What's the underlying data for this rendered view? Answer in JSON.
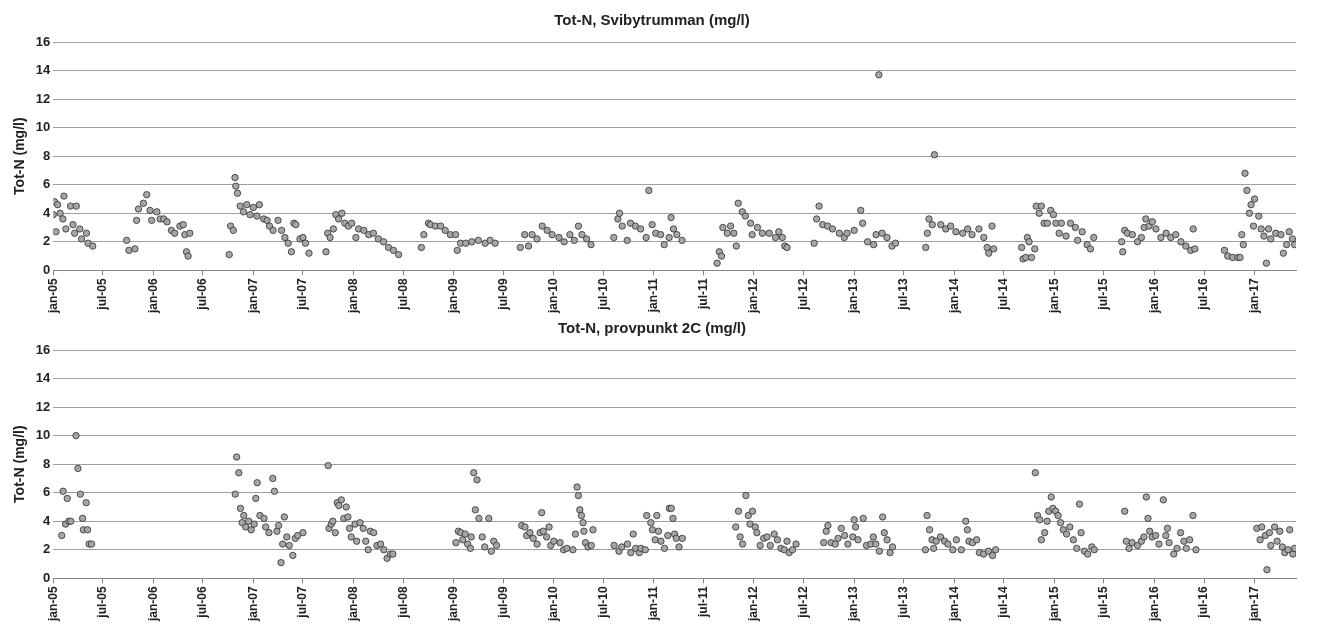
{
  "chart_data": [
    {
      "type": "scatter",
      "title": "Tot-N, Svibytrumman (mg/l)",
      "ylabel": "Tot-N (mg/l)",
      "color": "#a6a6a6",
      "marker": "circle",
      "grid": "y",
      "legend": false,
      "xlim": [
        "2005-01-01",
        "2017-06-01"
      ],
      "ylim": [
        0,
        16
      ],
      "yticks": [
        0,
        2,
        4,
        6,
        8,
        10,
        12,
        14,
        16
      ],
      "xticks": [
        {
          "value": "2005-01-01",
          "label": "jan-05"
        },
        {
          "value": "2005-07-01",
          "label": "jul-05"
        },
        {
          "value": "2006-01-01",
          "label": "jan-06"
        },
        {
          "value": "2006-07-01",
          "label": "jul-06"
        },
        {
          "value": "2007-01-01",
          "label": "jan-07"
        },
        {
          "value": "2007-07-01",
          "label": "jul-07"
        },
        {
          "value": "2008-01-01",
          "label": "jan-08"
        },
        {
          "value": "2008-07-01",
          "label": "jul-08"
        },
        {
          "value": "2009-01-01",
          "label": "jan-09"
        },
        {
          "value": "2009-07-01",
          "label": "jul-09"
        },
        {
          "value": "2010-01-01",
          "label": "jan-10"
        },
        {
          "value": "2010-07-01",
          "label": "jul-10"
        },
        {
          "value": "2011-01-01",
          "label": "jan-11"
        },
        {
          "value": "2011-07-01",
          "label": "jul-11"
        },
        {
          "value": "2012-01-01",
          "label": "jan-12"
        },
        {
          "value": "2012-07-01",
          "label": "jul-12"
        },
        {
          "value": "2013-01-01",
          "label": "jan-13"
        },
        {
          "value": "2013-07-01",
          "label": "jul-13"
        },
        {
          "value": "2014-01-01",
          "label": "jan-14"
        },
        {
          "value": "2014-07-01",
          "label": "jul-14"
        },
        {
          "value": "2015-01-01",
          "label": "jan-15"
        },
        {
          "value": "2015-07-01",
          "label": "jul-15"
        },
        {
          "value": "2016-01-01",
          "label": "jan-16"
        },
        {
          "value": "2016-07-01",
          "label": "jul-16"
        },
        {
          "value": "2017-01-01",
          "label": "jan-17"
        }
      ],
      "x": [
        "2005-01-01",
        "2005-01-06",
        "2005-01-11",
        "2005-01-17",
        "2005-01-26",
        "2005-02-05",
        "2005-02-09",
        "2005-02-16",
        "2005-03-05",
        "2005-03-14",
        "2005-03-20",
        "2005-03-26",
        "2005-04-08",
        "2005-04-14",
        "2005-05-02",
        "2005-05-08",
        "2005-05-25",
        "2005-09-26",
        "2005-10-04",
        "2005-10-26",
        "2005-11-01",
        "2005-11-08",
        "2005-11-26",
        "2005-12-08",
        "2005-12-20",
        "2005-12-26",
        "2006-01-14",
        "2006-01-26",
        "2006-02-08",
        "2006-02-20",
        "2006-03-08",
        "2006-03-20",
        "2006-04-08",
        "2006-04-20",
        "2006-04-26",
        "2006-05-02",
        "2006-05-08",
        "2006-05-14",
        "2006-10-05",
        "2006-10-10",
        "2006-10-20",
        "2006-10-26",
        "2006-10-29",
        "2006-11-04",
        "2006-11-14",
        "2006-11-26",
        "2006-12-08",
        "2006-12-20",
        "2007-01-01",
        "2007-01-14",
        "2007-01-23",
        "2007-02-08",
        "2007-02-20",
        "2007-03-01",
        "2007-03-14",
        "2007-04-01",
        "2007-04-14",
        "2007-04-26",
        "2007-05-08",
        "2007-05-20",
        "2007-05-29",
        "2007-06-05",
        "2007-06-20",
        "2007-07-01",
        "2007-07-10",
        "2007-07-23",
        "2007-09-23",
        "2007-09-29",
        "2007-10-08",
        "2007-10-20",
        "2007-10-29",
        "2007-11-08",
        "2007-11-20",
        "2007-12-01",
        "2007-12-14",
        "2007-12-26",
        "2008-01-10",
        "2008-01-20",
        "2008-02-08",
        "2008-02-26",
        "2008-03-14",
        "2008-04-01",
        "2008-04-20",
        "2008-05-08",
        "2008-05-26",
        "2008-06-14",
        "2008-09-05",
        "2008-09-14",
        "2008-10-01",
        "2008-10-08",
        "2008-10-26",
        "2008-11-14",
        "2008-12-01",
        "2008-12-20",
        "2009-01-08",
        "2009-01-14",
        "2009-01-26",
        "2009-02-14",
        "2009-03-08",
        "2009-04-01",
        "2009-04-26",
        "2009-05-14",
        "2009-06-01",
        "2009-09-01",
        "2009-09-17",
        "2009-10-01",
        "2009-10-14",
        "2009-11-01",
        "2009-11-20",
        "2009-12-08",
        "2009-12-26",
        "2010-01-20",
        "2010-02-08",
        "2010-03-01",
        "2010-03-17",
        "2010-04-01",
        "2010-04-14",
        "2010-05-01",
        "2010-05-17",
        "2010-08-08",
        "2010-08-23",
        "2010-08-29",
        "2010-09-08",
        "2010-09-26",
        "2010-10-08",
        "2010-10-26",
        "2010-11-14",
        "2010-12-04",
        "2010-12-14",
        "2010-12-26",
        "2011-01-08",
        "2011-01-26",
        "2011-02-08",
        "2011-02-26",
        "2011-03-05",
        "2011-03-14",
        "2011-03-26",
        "2011-04-14",
        "2011-08-20",
        "2011-08-28",
        "2011-09-05",
        "2011-09-10",
        "2011-09-26",
        "2011-10-08",
        "2011-10-20",
        "2011-10-29",
        "2011-11-05",
        "2011-11-20",
        "2011-12-01",
        "2011-12-20",
        "2011-12-26",
        "2012-01-14",
        "2012-02-01",
        "2012-02-26",
        "2012-03-20",
        "2012-04-01",
        "2012-04-14",
        "2012-04-23",
        "2012-05-01",
        "2012-08-08",
        "2012-08-17",
        "2012-08-26",
        "2012-09-08",
        "2012-09-26",
        "2012-10-14",
        "2012-11-08",
        "2012-11-26",
        "2012-12-06",
        "2013-01-01",
        "2013-01-25",
        "2013-02-01",
        "2013-02-19",
        "2013-03-13",
        "2013-03-22",
        "2013-04-01",
        "2013-04-13",
        "2013-05-01",
        "2013-05-19",
        "2013-06-01",
        "2013-09-19",
        "2013-09-25",
        "2013-10-01",
        "2013-10-13",
        "2013-10-21",
        "2013-11-13",
        "2013-12-01",
        "2013-12-19",
        "2014-01-07",
        "2014-02-01",
        "2014-02-19",
        "2014-03-07",
        "2014-04-01",
        "2014-04-19",
        "2014-05-01",
        "2014-05-07",
        "2014-05-19",
        "2014-05-25",
        "2014-09-04",
        "2014-09-09",
        "2014-09-19",
        "2014-09-25",
        "2014-10-01",
        "2014-10-10",
        "2014-10-22",
        "2014-10-27",
        "2014-11-07",
        "2014-11-15",
        "2014-11-25",
        "2014-12-07",
        "2014-12-19",
        "2014-12-29",
        "2015-01-07",
        "2015-01-19",
        "2015-01-27",
        "2015-02-13",
        "2015-03-01",
        "2015-03-19",
        "2015-03-27",
        "2015-04-13",
        "2015-05-01",
        "2015-05-13",
        "2015-05-25",
        "2015-09-04",
        "2015-09-08",
        "2015-09-15",
        "2015-09-25",
        "2015-10-13",
        "2015-11-01",
        "2015-11-15",
        "2015-11-25",
        "2015-12-01",
        "2015-12-13",
        "2015-12-25",
        "2016-01-07",
        "2016-01-25",
        "2016-02-13",
        "2016-03-01",
        "2016-03-19",
        "2016-04-07",
        "2016-04-25",
        "2016-05-13",
        "2016-05-22",
        "2016-05-28",
        "2016-09-13",
        "2016-09-25",
        "2016-10-13",
        "2016-11-01",
        "2016-11-09",
        "2016-11-15",
        "2016-11-21",
        "2016-11-27",
        "2016-12-04",
        "2016-12-13",
        "2016-12-19",
        "2016-12-28",
        "2017-01-01",
        "2017-01-16",
        "2017-01-25",
        "2017-02-04",
        "2017-02-13",
        "2017-02-21",
        "2017-03-01",
        "2017-03-19",
        "2017-04-07",
        "2017-04-16",
        "2017-04-28",
        "2017-05-07",
        "2017-05-19",
        "2017-05-27"
      ],
      "values": [
        3.9,
        4.8,
        2.7,
        4.6,
        4.0,
        3.6,
        5.2,
        2.9,
        4.5,
        3.2,
        2.6,
        4.5,
        2.9,
        2.2,
        2.6,
        1.9,
        1.7,
        2.1,
        1.4,
        1.5,
        3.5,
        4.3,
        4.7,
        5.3,
        4.2,
        3.5,
        4.1,
        3.6,
        3.6,
        3.4,
        2.8,
        2.6,
        3.1,
        3.2,
        2.5,
        1.3,
        1.0,
        2.6,
        1.1,
        3.1,
        2.8,
        6.5,
        5.9,
        5.4,
        4.5,
        4.1,
        4.6,
        3.9,
        4.4,
        3.8,
        4.6,
        3.6,
        3.5,
        3.1,
        2.8,
        3.5,
        2.8,
        2.3,
        1.9,
        1.3,
        3.3,
        3.2,
        2.2,
        2.3,
        1.9,
        1.2,
        1.3,
        2.6,
        2.3,
        2.9,
        3.9,
        3.6,
        4.0,
        3.3,
        3.1,
        3.3,
        2.3,
        2.9,
        2.8,
        2.5,
        2.6,
        2.2,
        2.0,
        1.6,
        1.4,
        1.1,
        1.6,
        2.5,
        3.3,
        3.2,
        3.1,
        3.1,
        2.8,
        2.5,
        2.5,
        1.4,
        1.9,
        1.9,
        2.0,
        2.1,
        1.9,
        2.1,
        1.9,
        1.6,
        2.5,
        1.7,
        2.5,
        2.2,
        3.1,
        2.8,
        2.5,
        2.3,
        2.0,
        2.5,
        2.1,
        3.1,
        2.5,
        2.2,
        1.8,
        2.3,
        3.6,
        4.0,
        3.1,
        2.1,
        3.3,
        3.1,
        2.9,
        2.3,
        5.6,
        3.2,
        2.6,
        2.5,
        1.8,
        2.3,
        3.7,
        2.9,
        2.5,
        2.1,
        0.5,
        1.3,
        1.0,
        3.0,
        2.6,
        3.1,
        2.6,
        1.7,
        4.7,
        4.1,
        3.8,
        3.3,
        2.5,
        3.0,
        2.6,
        2.6,
        2.3,
        2.7,
        2.3,
        1.7,
        1.6,
        1.9,
        3.6,
        4.5,
        3.2,
        3.1,
        2.9,
        2.6,
        2.3,
        2.6,
        2.8,
        4.2,
        3.3,
        2.0,
        1.8,
        2.5,
        13.7,
        2.6,
        2.3,
        1.7,
        1.9,
        1.6,
        2.6,
        3.6,
        3.2,
        8.1,
        3.2,
        2.9,
        3.1,
        2.7,
        2.6,
        2.9,
        2.5,
        2.9,
        2.3,
        1.6,
        1.2,
        3.1,
        1.5,
        1.6,
        0.8,
        0.9,
        2.3,
        2.0,
        0.9,
        1.5,
        4.5,
        4.0,
        4.5,
        3.3,
        3.3,
        4.2,
        3.9,
        3.3,
        2.6,
        3.3,
        2.4,
        3.3,
        3.0,
        2.1,
        2.7,
        1.8,
        1.5,
        2.3,
        2.0,
        1.3,
        2.8,
        2.6,
        2.5,
        2.0,
        2.3,
        3.0,
        3.6,
        3.1,
        3.4,
        2.9,
        2.3,
        2.6,
        2.3,
        2.5,
        2.0,
        1.7,
        1.4,
        2.9,
        1.5,
        1.4,
        1.0,
        0.9,
        0.9,
        0.9,
        2.5,
        1.8,
        6.8,
        5.6,
        4.0,
        4.6,
        3.1,
        5.0,
        3.8,
        2.9,
        2.4,
        0.5,
        2.9,
        2.2,
        2.6,
        2.5,
        1.2,
        1.8,
        2.7,
        2.2,
        1.8
      ]
    },
    {
      "type": "scatter",
      "title": "Tot-N, provpunkt 2C (mg/l)",
      "ylabel": "Tot-N (mg/l)",
      "color": "#a6a6a6",
      "marker": "circle",
      "grid": "y",
      "legend": false,
      "xlim": [
        "2005-01-01",
        "2017-06-01"
      ],
      "ylim": [
        0,
        16
      ],
      "yticks": [
        0,
        2,
        4,
        6,
        8,
        10,
        12,
        14,
        16
      ],
      "xticks": [
        {
          "value": "2005-01-01",
          "label": "jan-05"
        },
        {
          "value": "2005-07-01",
          "label": "jul-05"
        },
        {
          "value": "2006-01-01",
          "label": "jan-06"
        },
        {
          "value": "2006-07-01",
          "label": "jul-06"
        },
        {
          "value": "2007-01-01",
          "label": "jan-07"
        },
        {
          "value": "2007-07-01",
          "label": "jul-07"
        },
        {
          "value": "2008-01-01",
          "label": "jan-08"
        },
        {
          "value": "2008-07-01",
          "label": "jul-08"
        },
        {
          "value": "2009-01-01",
          "label": "jan-09"
        },
        {
          "value": "2009-07-01",
          "label": "jul-09"
        },
        {
          "value": "2010-01-01",
          "label": "jan-10"
        },
        {
          "value": "2010-07-01",
          "label": "jul-10"
        },
        {
          "value": "2011-01-01",
          "label": "jan-11"
        },
        {
          "value": "2011-07-01",
          "label": "jul-11"
        },
        {
          "value": "2012-01-01",
          "label": "jan-12"
        },
        {
          "value": "2012-07-01",
          "label": "jul-12"
        },
        {
          "value": "2013-01-01",
          "label": "jan-13"
        },
        {
          "value": "2013-07-01",
          "label": "jul-13"
        },
        {
          "value": "2014-01-01",
          "label": "jan-14"
        },
        {
          "value": "2014-07-01",
          "label": "jul-14"
        },
        {
          "value": "2015-01-01",
          "label": "jan-15"
        },
        {
          "value": "2015-07-01",
          "label": "jul-15"
        },
        {
          "value": "2016-01-01",
          "label": "jan-16"
        },
        {
          "value": "2016-07-01",
          "label": "jul-16"
        },
        {
          "value": "2017-01-01",
          "label": "jan-17"
        }
      ],
      "x": [
        "2005-02-01",
        "2005-02-06",
        "2005-02-15",
        "2005-02-21",
        "2005-02-27",
        "2005-03-06",
        "2005-03-25",
        "2005-04-01",
        "2005-04-10",
        "2005-04-18",
        "2005-04-21",
        "2005-05-01",
        "2005-05-06",
        "2005-05-12",
        "2005-05-21",
        "2006-10-27",
        "2006-11-01",
        "2006-11-09",
        "2006-11-15",
        "2006-11-21",
        "2006-11-27",
        "2006-12-04",
        "2006-12-15",
        "2006-12-24",
        "2007-01-04",
        "2007-01-10",
        "2007-01-15",
        "2007-01-25",
        "2007-02-09",
        "2007-02-15",
        "2007-02-27",
        "2007-03-13",
        "2007-03-19",
        "2007-03-28",
        "2007-04-03",
        "2007-04-12",
        "2007-04-18",
        "2007-04-24",
        "2007-05-03",
        "2007-05-12",
        "2007-05-25",
        "2007-06-03",
        "2007-06-12",
        "2007-07-01",
        "2007-10-01",
        "2007-10-04",
        "2007-10-12",
        "2007-10-18",
        "2007-10-27",
        "2007-11-03",
        "2007-11-09",
        "2007-11-18",
        "2007-11-27",
        "2007-12-06",
        "2007-12-12",
        "2007-12-18",
        "2007-12-24",
        "2008-01-07",
        "2008-01-13",
        "2008-01-25",
        "2008-02-06",
        "2008-02-15",
        "2008-02-24",
        "2008-03-03",
        "2008-03-15",
        "2008-03-27",
        "2008-04-09",
        "2008-04-21",
        "2008-05-03",
        "2008-05-15",
        "2008-05-24",
        "2009-01-09",
        "2009-01-18",
        "2009-01-27",
        "2009-02-03",
        "2009-02-12",
        "2009-02-21",
        "2009-03-03",
        "2009-03-06",
        "2009-03-15",
        "2009-03-21",
        "2009-03-27",
        "2009-04-03",
        "2009-04-15",
        "2009-04-24",
        "2009-05-09",
        "2009-05-18",
        "2009-05-27",
        "2009-06-06",
        "2009-09-06",
        "2009-09-18",
        "2009-09-24",
        "2009-10-06",
        "2009-10-18",
        "2009-11-01",
        "2009-11-12",
        "2009-11-18",
        "2009-11-24",
        "2009-12-06",
        "2009-12-15",
        "2009-12-21",
        "2010-01-01",
        "2010-01-24",
        "2010-02-06",
        "2010-02-18",
        "2010-03-12",
        "2010-03-21",
        "2010-03-27",
        "2010-04-01",
        "2010-04-06",
        "2010-04-12",
        "2010-04-18",
        "2010-04-21",
        "2010-04-27",
        "2010-05-06",
        "2010-05-18",
        "2010-05-24",
        "2010-08-09",
        "2010-08-27",
        "2010-09-06",
        "2010-09-27",
        "2010-10-09",
        "2010-10-18",
        "2010-10-27",
        "2010-11-09",
        "2010-11-15",
        "2010-12-01",
        "2010-12-06",
        "2010-12-21",
        "2010-12-27",
        "2011-01-06",
        "2011-01-12",
        "2011-01-18",
        "2011-01-27",
        "2011-02-09",
        "2011-02-21",
        "2011-02-27",
        "2011-03-06",
        "2011-03-12",
        "2011-03-18",
        "2011-03-24",
        "2011-04-03",
        "2011-04-15",
        "2011-10-27",
        "2011-11-06",
        "2011-11-12",
        "2011-11-21",
        "2011-12-03",
        "2011-12-12",
        "2011-12-18",
        "2011-12-27",
        "2012-01-06",
        "2012-01-12",
        "2012-01-24",
        "2012-02-06",
        "2012-02-18",
        "2012-03-01",
        "2012-03-15",
        "2012-03-27",
        "2012-04-09",
        "2012-04-21",
        "2012-05-01",
        "2012-05-09",
        "2012-05-21",
        "2012-06-03",
        "2012-09-12",
        "2012-09-21",
        "2012-09-27",
        "2012-10-09",
        "2012-10-24",
        "2012-11-03",
        "2012-11-15",
        "2012-11-27",
        "2012-12-09",
        "2012-12-27",
        "2013-01-01",
        "2013-01-06",
        "2013-01-15",
        "2013-02-03",
        "2013-02-15",
        "2013-03-03",
        "2013-03-12",
        "2013-03-21",
        "2013-04-03",
        "2013-04-15",
        "2013-04-21",
        "2013-05-01",
        "2013-05-12",
        "2013-05-21",
        "2013-09-18",
        "2013-09-24",
        "2013-10-03",
        "2013-10-12",
        "2013-10-18",
        "2013-10-27",
        "2013-11-12",
        "2013-11-27",
        "2013-12-09",
        "2013-12-27",
        "2014-01-09",
        "2014-01-27",
        "2014-02-12",
        "2014-02-18",
        "2014-02-24",
        "2014-03-09",
        "2014-03-24",
        "2014-04-03",
        "2014-04-18",
        "2014-05-06",
        "2014-05-21",
        "2014-06-01",
        "2014-10-24",
        "2014-11-01",
        "2014-11-09",
        "2014-11-15",
        "2014-11-27",
        "2014-12-06",
        "2014-12-12",
        "2014-12-21",
        "2014-12-27",
        "2015-01-06",
        "2015-01-15",
        "2015-01-24",
        "2015-02-03",
        "2015-02-15",
        "2015-02-27",
        "2015-03-12",
        "2015-03-24",
        "2015-04-03",
        "2015-04-09",
        "2015-04-21",
        "2015-05-03",
        "2015-05-18",
        "2015-05-27",
        "2015-09-15",
        "2015-09-21",
        "2015-10-01",
        "2015-10-12",
        "2015-11-01",
        "2015-11-15",
        "2015-11-24",
        "2015-12-03",
        "2015-12-09",
        "2015-12-15",
        "2015-12-24",
        "2016-01-06",
        "2016-01-18",
        "2016-02-03",
        "2016-02-12",
        "2016-02-18",
        "2016-02-24",
        "2016-03-12",
        "2016-03-24",
        "2016-04-06",
        "2016-04-18",
        "2016-04-27",
        "2016-05-09",
        "2016-05-21",
        "2016-06-01",
        "2017-01-09",
        "2017-01-21",
        "2017-01-27",
        "2017-02-09",
        "2017-02-15",
        "2017-02-24",
        "2017-03-01",
        "2017-03-15",
        "2017-03-24",
        "2017-04-03",
        "2017-04-12",
        "2017-04-21",
        "2017-05-03",
        "2017-05-09",
        "2017-05-21",
        "2017-05-27"
      ],
      "values": [
        3.0,
        6.1,
        3.8,
        5.6,
        4.0,
        4.0,
        10.0,
        7.7,
        5.9,
        4.2,
        3.4,
        5.3,
        3.4,
        2.4,
        2.4,
        5.9,
        8.5,
        7.4,
        4.9,
        3.9,
        4.4,
        3.6,
        4.0,
        3.4,
        3.8,
        5.6,
        6.7,
        4.4,
        4.2,
        3.6,
        3.2,
        7.0,
        6.1,
        3.3,
        3.7,
        1.1,
        2.4,
        4.3,
        2.9,
        2.3,
        1.6,
        2.8,
        3.0,
        3.2,
        7.9,
        3.5,
        3.8,
        4.0,
        3.2,
        5.3,
        5.1,
        5.5,
        4.2,
        5.0,
        4.3,
        3.5,
        2.9,
        3.8,
        2.6,
        3.9,
        3.5,
        2.6,
        2.0,
        3.3,
        3.2,
        2.3,
        2.4,
        2.0,
        1.4,
        1.7,
        1.7,
        2.5,
        3.3,
        3.2,
        2.7,
        3.1,
        2.4,
        2.1,
        2.9,
        7.4,
        4.8,
        6.9,
        4.2,
        2.9,
        2.2,
        4.2,
        1.9,
        2.6,
        2.3,
        3.7,
        3.6,
        3.0,
        3.2,
        2.8,
        2.4,
        3.2,
        4.6,
        3.3,
        2.9,
        3.6,
        2.3,
        2.6,
        2.5,
        2.0,
        2.1,
        2.0,
        3.1,
        6.4,
        5.8,
        4.8,
        4.4,
        3.9,
        3.3,
        2.5,
        2.2,
        2.3,
        3.4,
        2.3,
        1.9,
        2.2,
        2.4,
        1.8,
        3.1,
        2.1,
        1.8,
        2.1,
        2.0,
        4.4,
        3.9,
        3.4,
        2.7,
        4.4,
        3.3,
        2.6,
        2.1,
        3.0,
        4.9,
        4.9,
        4.2,
        3.1,
        2.8,
        2.2,
        2.8,
        3.6,
        4.7,
        2.9,
        2.4,
        5.8,
        4.4,
        3.8,
        4.7,
        3.6,
        3.2,
        2.3,
        2.8,
        2.9,
        2.3,
        3.1,
        2.7,
        2.1,
        2.0,
        2.6,
        1.8,
        2.0,
        2.4,
        2.5,
        3.3,
        3.7,
        2.5,
        2.4,
        2.8,
        3.5,
        3.0,
        2.4,
        2.9,
        4.1,
        3.6,
        2.7,
        4.2,
        2.3,
        2.4,
        2.9,
        2.4,
        1.9,
        4.3,
        3.2,
        2.7,
        1.8,
        2.2,
        2.0,
        4.4,
        3.4,
        2.7,
        2.1,
        2.6,
        2.9,
        2.6,
        2.4,
        2.0,
        2.7,
        2.0,
        4.0,
        3.4,
        2.6,
        2.5,
        2.7,
        1.8,
        1.7,
        1.9,
        1.6,
        2.0,
        7.4,
        4.4,
        4.1,
        2.7,
        3.2,
        4.0,
        4.7,
        5.7,
        4.9,
        4.7,
        4.4,
        3.9,
        3.4,
        3.1,
        3.6,
        2.7,
        2.1,
        5.2,
        3.2,
        1.9,
        1.7,
        2.2,
        2.0,
        4.7,
        2.6,
        2.1,
        2.5,
        2.3,
        2.6,
        2.9,
        5.7,
        4.2,
        3.3,
        2.9,
        3.0,
        2.4,
        5.5,
        3.0,
        3.5,
        2.5,
        1.7,
        2.1,
        3.2,
        2.6,
        2.1,
        2.7,
        4.4,
        2.0,
        3.5,
        2.7,
        3.6,
        3.0,
        0.6,
        3.2,
        2.3,
        3.6,
        2.6,
        3.3,
        2.2,
        1.8,
        2.0,
        3.4,
        1.7,
        2.1
      ]
    }
  ]
}
